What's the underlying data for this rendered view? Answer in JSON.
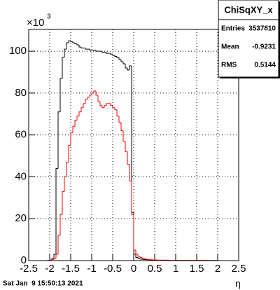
{
  "chart_data": {
    "type": "histogram",
    "bins": [
      -2.5,
      -2.45,
      -2.4,
      -2.35,
      -2.3,
      -2.25,
      -2.2,
      -2.15,
      -2.1,
      -2.05,
      -2,
      -1.95,
      -1.9,
      -1.85,
      -1.8,
      -1.75,
      -1.7,
      -1.65,
      -1.6,
      -1.55,
      -1.5,
      -1.45,
      -1.4,
      -1.35,
      -1.3,
      -1.25,
      -1.2,
      -1.15,
      -1.1,
      -1.05,
      -1,
      -0.95,
      -0.9,
      -0.85,
      -0.8,
      -0.75,
      -0.7,
      -0.65,
      -0.6,
      -0.55,
      -0.5,
      -0.45,
      -0.4,
      -0.35,
      -0.3,
      -0.25,
      -0.2,
      -0.15,
      -0.1,
      -0.05,
      0,
      0.05,
      0.1,
      0.15,
      0.2,
      0.25,
      0.3,
      0.35,
      0.4,
      0.45,
      0.5,
      0.55,
      0.6,
      0.65,
      0.7,
      0.75,
      0.8,
      0.85,
      0.9,
      0.95,
      1,
      1.05,
      1.1,
      1.15,
      1.2,
      1.25,
      1.3,
      1.35,
      1.4,
      1.45,
      1.5,
      1.55,
      1.6,
      1.65,
      1.7,
      1.75,
      1.8,
      1.85,
      1.9,
      1.95,
      2,
      2.05,
      2.1,
      2.15,
      2.2,
      2.25,
      2.3,
      2.35,
      2.4,
      2.45,
      2.5
    ],
    "series": [
      {
        "color": "#000000",
        "values": [
          0,
          0,
          0,
          0,
          0,
          0,
          0,
          0,
          0,
          0.1,
          0.3,
          1,
          3,
          44,
          71,
          87,
          97,
          101,
          104,
          105,
          104.5,
          104,
          103.5,
          103,
          102,
          101.5,
          101.5,
          101,
          101,
          100.5,
          100.5,
          100.5,
          100,
          100,
          100,
          99.5,
          99.5,
          99,
          99,
          98.5,
          98,
          97.5,
          97,
          96,
          95,
          94,
          92,
          91,
          93,
          23,
          3,
          1.5,
          1,
          0.7,
          0.6,
          0.5,
          0.4,
          0.4,
          0.3,
          0.3,
          0.3,
          0.2,
          0.2,
          0.2,
          0.2,
          0.2,
          0.2,
          0.1,
          0.1,
          0.1,
          0.1,
          0.1,
          0.1,
          0.1,
          0.1,
          0.1,
          0.1,
          0.1,
          0.1,
          0.1,
          0.1,
          0.1,
          0.1,
          0.1,
          0.1,
          0.1,
          0.1,
          0.1,
          0.1,
          0.1,
          0,
          0,
          0,
          0,
          0,
          0,
          0,
          0,
          0,
          0
        ]
      },
      {
        "color": "#ff0000",
        "values": [
          0,
          0,
          0,
          0,
          0,
          0,
          0,
          0,
          0,
          0.1,
          0.2,
          0.5,
          1,
          3,
          12,
          22,
          33,
          40,
          47,
          55,
          61,
          64,
          67,
          69,
          71,
          73,
          75,
          77,
          78,
          79,
          80,
          81,
          79,
          76,
          74,
          73,
          74,
          75,
          75,
          74,
          73,
          72,
          69,
          66,
          62,
          57,
          52,
          46,
          38,
          22,
          5,
          3,
          2,
          1.5,
          1,
          0.8,
          0.6,
          0.5,
          0.4,
          0.3,
          0.3,
          0.2,
          0.2,
          0.2,
          0.2,
          0.2,
          0.1,
          0.1,
          0.1,
          0.1,
          0.1,
          0.1,
          0.1,
          0.1,
          0.1,
          0.1,
          0.1,
          0.1,
          0.1,
          0.1,
          0.1,
          0.1,
          0.1,
          0.1,
          0.1,
          0,
          0,
          0,
          0,
          0,
          0,
          0,
          0,
          0,
          0,
          0,
          0,
          0,
          0,
          0
        ]
      }
    ],
    "xlim": [
      -2.5,
      2.5
    ],
    "xticks": [
      -2.5,
      -2,
      -1.5,
      -1,
      -0.5,
      0,
      0.5,
      1,
      1.5,
      2,
      2.5
    ],
    "ylim": [
      0,
      110.4
    ],
    "yticks": [
      0,
      20,
      40,
      60,
      80,
      100
    ],
    "y_scale_label": "×10",
    "y_scale_exponent": "3",
    "x_label": "η",
    "grid": true,
    "stats": {
      "title": "ChiSqXY_x",
      "rows": [
        [
          "Entries",
          "3537810"
        ],
        [
          "Mean",
          "-0.9231"
        ],
        [
          "RMS",
          "0.5144"
        ]
      ]
    },
    "footer": "Sat Jan  9 15:50:13 2021"
  }
}
